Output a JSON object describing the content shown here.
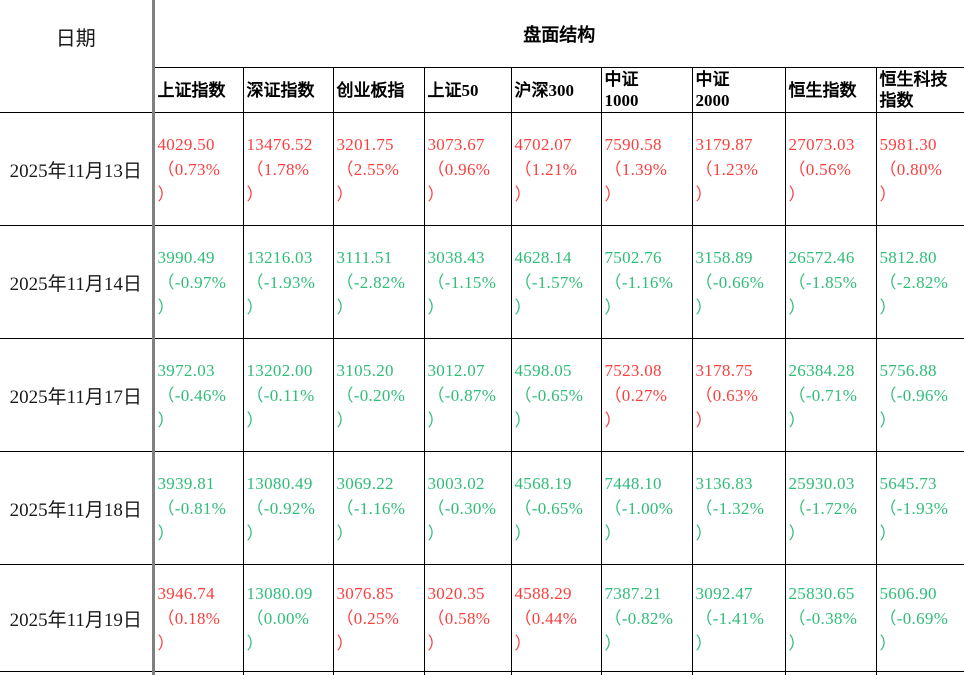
{
  "table": {
    "date_header": "日期",
    "group_header": "盘面结构",
    "columns": [
      "上证指数",
      "深证指数",
      "创业板指",
      "上证50",
      "沪深300",
      "中证\n1000",
      "中证\n2000",
      "恒生指数",
      "恒生科技\n指数"
    ],
    "colors": {
      "up": "#fa3e3e",
      "down": "#2fbd78",
      "grid": "#000000",
      "divider": "#808080"
    },
    "rows": [
      {
        "date": "2025年11月13日",
        "cells": [
          {
            "value": "4029.50",
            "change": "0.73%",
            "dir": "up"
          },
          {
            "value": "13476.52",
            "change": "1.78%",
            "dir": "up"
          },
          {
            "value": "3201.75",
            "change": "2.55%",
            "dir": "up"
          },
          {
            "value": "3073.67",
            "change": "0.96%",
            "dir": "up"
          },
          {
            "value": "4702.07",
            "change": "1.21%",
            "dir": "up"
          },
          {
            "value": "7590.58",
            "change": "1.39%",
            "dir": "up"
          },
          {
            "value": "3179.87",
            "change": "1.23%",
            "dir": "up"
          },
          {
            "value": "27073.03",
            "change": "0.56%",
            "dir": "up"
          },
          {
            "value": "5981.30",
            "change": "0.80%",
            "dir": "up"
          }
        ]
      },
      {
        "date": "2025年11月14日",
        "cells": [
          {
            "value": "3990.49",
            "change": "-0.97%",
            "dir": "down"
          },
          {
            "value": "13216.03",
            "change": "-1.93%",
            "dir": "down"
          },
          {
            "value": "3111.51",
            "change": "-2.82%",
            "dir": "down"
          },
          {
            "value": "3038.43",
            "change": "-1.15%",
            "dir": "down"
          },
          {
            "value": "4628.14",
            "change": "-1.57%",
            "dir": "down"
          },
          {
            "value": "7502.76",
            "change": "-1.16%",
            "dir": "down"
          },
          {
            "value": "3158.89",
            "change": "-0.66%",
            "dir": "down"
          },
          {
            "value": "26572.46",
            "change": "-1.85%",
            "dir": "down"
          },
          {
            "value": "5812.80",
            "change": "-2.82%",
            "dir": "down"
          }
        ]
      },
      {
        "date": "2025年11月17日",
        "cells": [
          {
            "value": "3972.03",
            "change": "-0.46%",
            "dir": "down"
          },
          {
            "value": "13202.00",
            "change": "-0.11%",
            "dir": "down"
          },
          {
            "value": "3105.20",
            "change": "-0.20%",
            "dir": "down"
          },
          {
            "value": "3012.07",
            "change": "-0.87%",
            "dir": "down"
          },
          {
            "value": "4598.05",
            "change": "-0.65%",
            "dir": "down"
          },
          {
            "value": "7523.08",
            "change": "0.27%",
            "dir": "up"
          },
          {
            "value": "3178.75",
            "change": "0.63%",
            "dir": "up"
          },
          {
            "value": "26384.28",
            "change": "-0.71%",
            "dir": "down"
          },
          {
            "value": "5756.88",
            "change": "-0.96%",
            "dir": "down"
          }
        ]
      },
      {
        "date": "2025年11月18日",
        "cells": [
          {
            "value": "3939.81",
            "change": "-0.81%",
            "dir": "down"
          },
          {
            "value": "13080.49",
            "change": "-0.92%",
            "dir": "down"
          },
          {
            "value": "3069.22",
            "change": "-1.16%",
            "dir": "down"
          },
          {
            "value": "3003.02",
            "change": "-0.30%",
            "dir": "down"
          },
          {
            "value": "4568.19",
            "change": "-0.65%",
            "dir": "down"
          },
          {
            "value": "7448.10",
            "change": "-1.00%",
            "dir": "down"
          },
          {
            "value": "3136.83",
            "change": "-1.32%",
            "dir": "down"
          },
          {
            "value": "25930.03",
            "change": "-1.72%",
            "dir": "down"
          },
          {
            "value": "5645.73",
            "change": "-1.93%",
            "dir": "down"
          }
        ]
      },
      {
        "date": "2025年11月19日",
        "cells": [
          {
            "value": "3946.74",
            "change": "0.18%",
            "dir": "up"
          },
          {
            "value": "13080.09",
            "change": "0.00%",
            "dir": "down"
          },
          {
            "value": "3076.85",
            "change": "0.25%",
            "dir": "up"
          },
          {
            "value": "3020.35",
            "change": "0.58%",
            "dir": "up"
          },
          {
            "value": "4588.29",
            "change": "0.44%",
            "dir": "up"
          },
          {
            "value": "7387.21",
            "change": "-0.82%",
            "dir": "down"
          },
          {
            "value": "3092.47",
            "change": "-1.41%",
            "dir": "down"
          },
          {
            "value": "25830.65",
            "change": "-0.38%",
            "dir": "down"
          },
          {
            "value": "5606.90",
            "change": "-0.69%",
            "dir": "down"
          }
        ]
      }
    ]
  }
}
